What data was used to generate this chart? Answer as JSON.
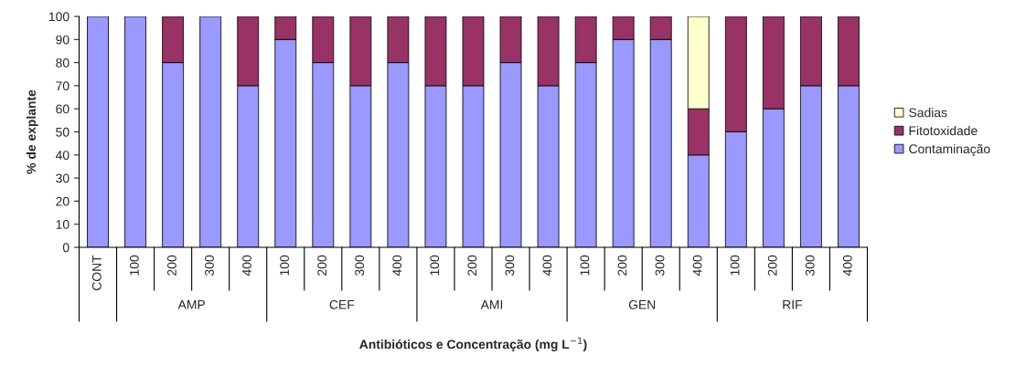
{
  "chart_data": {
    "type": "bar",
    "stacked": true,
    "xlabel": "Antibióticos e Concentração (mg L$^{−1}$)",
    "ylabel": "% de explante",
    "categories": [
      "CONT",
      "100",
      "200",
      "300",
      "400",
      "100",
      "200",
      "300",
      "400",
      "100",
      "200",
      "300",
      "400",
      "100",
      "200",
      "300",
      "400",
      "100",
      "200",
      "300",
      "400"
    ],
    "annotations": [
      "AMP",
      "CEF",
      "AMI",
      "GEN",
      "RIF"
    ],
    "series": [
      {
        "name": "Contaminação",
        "color": "#9999ff",
        "values": [
          100,
          100,
          80,
          100,
          70,
          90,
          80,
          70,
          80,
          70,
          70,
          80,
          70,
          80,
          90,
          90,
          40,
          50,
          60,
          70,
          70
        ]
      },
      {
        "name": "Fitotoxidade",
        "color": "#993366",
        "values": [
          null,
          null,
          20,
          null,
          30,
          10,
          20,
          30,
          20,
          30,
          30,
          20,
          30,
          20,
          10,
          10,
          20,
          50,
          40,
          30,
          30
        ]
      },
      {
        "name": "Sadias",
        "color": "#ffffcc",
        "values": [
          null,
          null,
          null,
          null,
          null,
          null,
          null,
          null,
          null,
          null,
          null,
          null,
          null,
          null,
          null,
          null,
          40,
          null,
          null,
          null,
          null
        ]
      }
    ],
    "ylim": [
      0,
      100
    ],
    "yticks": [
      0,
      10,
      20,
      30,
      40,
      50,
      60,
      70,
      80,
      90,
      100
    ],
    "legend": "right",
    "grid": false
  }
}
